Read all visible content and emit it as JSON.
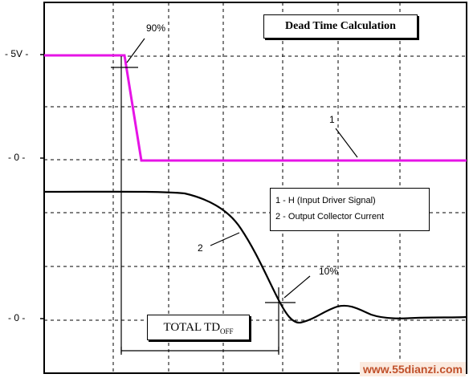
{
  "title": "Dead Time Calculation",
  "y_labels": {
    "five_v": "- 5V -",
    "zero_1": "- 0 -",
    "zero_2": "- 0 -"
  },
  "markers": {
    "ninety": "90%",
    "ten": "10%",
    "trace1": "1",
    "trace2": "2"
  },
  "legend": {
    "item1": "1 - H (Input Driver Signal)",
    "item2": "2 - Output Collector Current"
  },
  "td_label": {
    "main": "TOTAL TD",
    "sub": "OFF"
  },
  "watermark": "www.55dianzi.com",
  "colors": {
    "trace1": "#e614e6",
    "trace2": "#000000",
    "grid": "#000000"
  }
}
